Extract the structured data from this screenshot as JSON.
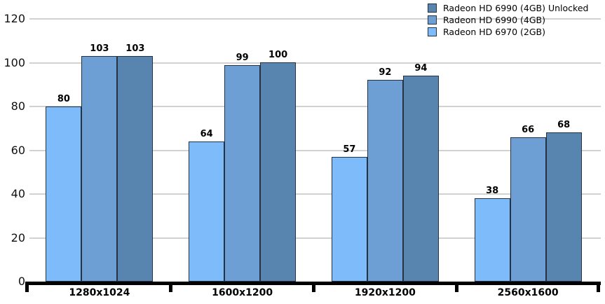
{
  "chart_data": {
    "type": "bar",
    "title": "",
    "xlabel": "",
    "ylabel": "",
    "categories": [
      "1280x1024",
      "1600x1200",
      "1920x1200",
      "2560x1600"
    ],
    "series": [
      {
        "name": "Radeon HD 6990 (4GB) Unlocked",
        "color": "#5785B0",
        "values": [
          103,
          100,
          94,
          68
        ]
      },
      {
        "name": "Radeon HD 6990 (4GB)",
        "color": "#6D9FD4",
        "values": [
          103,
          99,
          92,
          66
        ]
      },
      {
        "name": "Radeon HD 6970 (2GB)",
        "color": "#7EBBFB",
        "values": [
          80,
          64,
          57,
          38
        ]
      }
    ],
    "bar_order_within_group": [
      "Radeon HD 6970 (2GB)",
      "Radeon HD 6990 (4GB)",
      "Radeon HD 6990 (4GB) Unlocked"
    ],
    "value_labels_shown": true,
    "yticks": [
      0,
      20,
      40,
      60,
      80,
      100,
      120
    ],
    "ylim": [
      0,
      120
    ],
    "grid": true,
    "gridline_color": "#d2d2d2",
    "bar_border_color": "#243242",
    "axis_color": "#000000",
    "legend_position": "top-right"
  }
}
